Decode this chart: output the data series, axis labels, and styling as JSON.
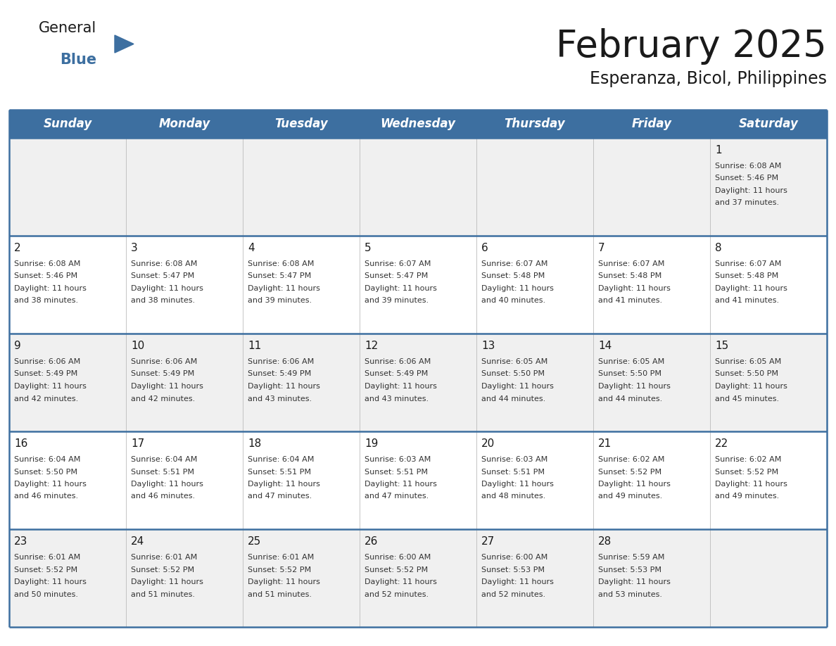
{
  "title": "February 2025",
  "subtitle": "Esperanza, Bicol, Philippines",
  "header_bg": "#3d6fa0",
  "header_text": "#ffffff",
  "row_bg_0": "#f0f0f0",
  "row_bg_1": "#ffffff",
  "row_bg_2": "#f0f0f0",
  "row_bg_3": "#ffffff",
  "row_bg_4": "#f0f0f0",
  "border_color": "#3d6fa0",
  "divider_color": "#3d6fa0",
  "day_headers": [
    "Sunday",
    "Monday",
    "Tuesday",
    "Wednesday",
    "Thursday",
    "Friday",
    "Saturday"
  ],
  "days": [
    {
      "day": 1,
      "col": 6,
      "row": 0,
      "sunrise": "6:08 AM",
      "sunset": "5:46 PM",
      "daylight": "11 hours and 37 minutes"
    },
    {
      "day": 2,
      "col": 0,
      "row": 1,
      "sunrise": "6:08 AM",
      "sunset": "5:46 PM",
      "daylight": "11 hours and 38 minutes"
    },
    {
      "day": 3,
      "col": 1,
      "row": 1,
      "sunrise": "6:08 AM",
      "sunset": "5:47 PM",
      "daylight": "11 hours and 38 minutes"
    },
    {
      "day": 4,
      "col": 2,
      "row": 1,
      "sunrise": "6:08 AM",
      "sunset": "5:47 PM",
      "daylight": "11 hours and 39 minutes"
    },
    {
      "day": 5,
      "col": 3,
      "row": 1,
      "sunrise": "6:07 AM",
      "sunset": "5:47 PM",
      "daylight": "11 hours and 39 minutes"
    },
    {
      "day": 6,
      "col": 4,
      "row": 1,
      "sunrise": "6:07 AM",
      "sunset": "5:48 PM",
      "daylight": "11 hours and 40 minutes"
    },
    {
      "day": 7,
      "col": 5,
      "row": 1,
      "sunrise": "6:07 AM",
      "sunset": "5:48 PM",
      "daylight": "11 hours and 41 minutes"
    },
    {
      "day": 8,
      "col": 6,
      "row": 1,
      "sunrise": "6:07 AM",
      "sunset": "5:48 PM",
      "daylight": "11 hours and 41 minutes"
    },
    {
      "day": 9,
      "col": 0,
      "row": 2,
      "sunrise": "6:06 AM",
      "sunset": "5:49 PM",
      "daylight": "11 hours and 42 minutes"
    },
    {
      "day": 10,
      "col": 1,
      "row": 2,
      "sunrise": "6:06 AM",
      "sunset": "5:49 PM",
      "daylight": "11 hours and 42 minutes"
    },
    {
      "day": 11,
      "col": 2,
      "row": 2,
      "sunrise": "6:06 AM",
      "sunset": "5:49 PM",
      "daylight": "11 hours and 43 minutes"
    },
    {
      "day": 12,
      "col": 3,
      "row": 2,
      "sunrise": "6:06 AM",
      "sunset": "5:49 PM",
      "daylight": "11 hours and 43 minutes"
    },
    {
      "day": 13,
      "col": 4,
      "row": 2,
      "sunrise": "6:05 AM",
      "sunset": "5:50 PM",
      "daylight": "11 hours and 44 minutes"
    },
    {
      "day": 14,
      "col": 5,
      "row": 2,
      "sunrise": "6:05 AM",
      "sunset": "5:50 PM",
      "daylight": "11 hours and 44 minutes"
    },
    {
      "day": 15,
      "col": 6,
      "row": 2,
      "sunrise": "6:05 AM",
      "sunset": "5:50 PM",
      "daylight": "11 hours and 45 minutes"
    },
    {
      "day": 16,
      "col": 0,
      "row": 3,
      "sunrise": "6:04 AM",
      "sunset": "5:50 PM",
      "daylight": "11 hours and 46 minutes"
    },
    {
      "day": 17,
      "col": 1,
      "row": 3,
      "sunrise": "6:04 AM",
      "sunset": "5:51 PM",
      "daylight": "11 hours and 46 minutes"
    },
    {
      "day": 18,
      "col": 2,
      "row": 3,
      "sunrise": "6:04 AM",
      "sunset": "5:51 PM",
      "daylight": "11 hours and 47 minutes"
    },
    {
      "day": 19,
      "col": 3,
      "row": 3,
      "sunrise": "6:03 AM",
      "sunset": "5:51 PM",
      "daylight": "11 hours and 47 minutes"
    },
    {
      "day": 20,
      "col": 4,
      "row": 3,
      "sunrise": "6:03 AM",
      "sunset": "5:51 PM",
      "daylight": "11 hours and 48 minutes"
    },
    {
      "day": 21,
      "col": 5,
      "row": 3,
      "sunrise": "6:02 AM",
      "sunset": "5:52 PM",
      "daylight": "11 hours and 49 minutes"
    },
    {
      "day": 22,
      "col": 6,
      "row": 3,
      "sunrise": "6:02 AM",
      "sunset": "5:52 PM",
      "daylight": "11 hours and 49 minutes"
    },
    {
      "day": 23,
      "col": 0,
      "row": 4,
      "sunrise": "6:01 AM",
      "sunset": "5:52 PM",
      "daylight": "11 hours and 50 minutes"
    },
    {
      "day": 24,
      "col": 1,
      "row": 4,
      "sunrise": "6:01 AM",
      "sunset": "5:52 PM",
      "daylight": "11 hours and 51 minutes"
    },
    {
      "day": 25,
      "col": 2,
      "row": 4,
      "sunrise": "6:01 AM",
      "sunset": "5:52 PM",
      "daylight": "11 hours and 51 minutes"
    },
    {
      "day": 26,
      "col": 3,
      "row": 4,
      "sunrise": "6:00 AM",
      "sunset": "5:52 PM",
      "daylight": "11 hours and 52 minutes"
    },
    {
      "day": 27,
      "col": 4,
      "row": 4,
      "sunrise": "6:00 AM",
      "sunset": "5:53 PM",
      "daylight": "11 hours and 52 minutes"
    },
    {
      "day": 28,
      "col": 5,
      "row": 4,
      "sunrise": "5:59 AM",
      "sunset": "5:53 PM",
      "daylight": "11 hours and 53 minutes"
    }
  ],
  "num_rows": 5,
  "logo_general_color": "#1a1a1a",
  "logo_blue_color": "#3d6fa0",
  "logo_triangle_color": "#3d6fa0",
  "title_color": "#1a1a1a",
  "subtitle_color": "#1a1a1a",
  "text_color": "#333333",
  "day_num_color": "#1a1a1a",
  "title_fontsize": 38,
  "subtitle_fontsize": 17,
  "header_fontsize": 12,
  "day_num_fontsize": 11,
  "cell_text_fontsize": 8
}
